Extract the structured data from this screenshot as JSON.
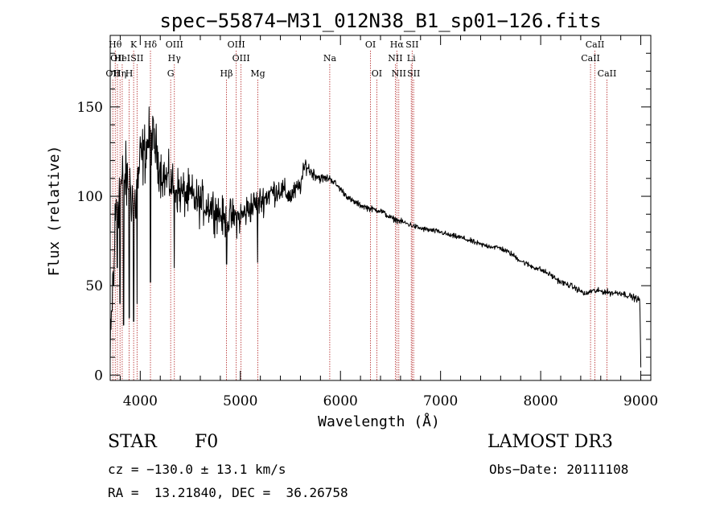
{
  "chart_data": {
    "type": "line",
    "title": "spec−55874−M31_012N38_B1_sp01−126.fits",
    "xlabel": "Wavelength (Å)",
    "ylabel": "Flux (relative)",
    "xlim": [
      3700,
      9100
    ],
    "ylim": [
      -3,
      190
    ],
    "xticks": [
      4000,
      5000,
      6000,
      7000,
      8000,
      9000
    ],
    "yticks": [
      0,
      50,
      100,
      150
    ],
    "grid": false,
    "line_color": "#000000",
    "marker_color": "#b22222",
    "spectrum_anchors": {
      "x": [
        3700,
        3730,
        3760,
        3800,
        3850,
        3900,
        3950,
        4000,
        4050,
        4100,
        4150,
        4200,
        4250,
        4300,
        4350,
        4400,
        4500,
        4600,
        4700,
        4800,
        4850,
        4900,
        5000,
        5100,
        5200,
        5300,
        5400,
        5500,
        5600,
        5650,
        5700,
        5800,
        5900,
        6000,
        6100,
        6200,
        6300,
        6400,
        6500,
        6600,
        6700,
        6800,
        6900,
        7000,
        7100,
        7200,
        7300,
        7400,
        7500,
        7600,
        7700,
        7800,
        7900,
        8000,
        8100,
        8200,
        8300,
        8400,
        8450,
        8500,
        8600,
        8700,
        8800,
        8900,
        8990,
        9000
      ],
      "y": [
        5,
        60,
        95,
        105,
        110,
        105,
        95,
        120,
        125,
        135,
        128,
        115,
        110,
        108,
        105,
        102,
        100,
        96,
        95,
        90,
        85,
        88,
        88,
        94,
        97,
        102,
        104,
        100,
        106,
        118,
        114,
        110,
        110,
        104,
        98,
        95,
        93,
        92,
        88,
        86,
        84,
        82,
        81,
        80,
        78,
        77,
        75,
        73,
        72,
        71,
        68,
        64,
        61,
        59,
        56,
        52,
        50,
        47,
        45,
        47,
        47,
        46,
        46,
        44,
        42,
        5
      ]
    },
    "noise_amplitude": [
      [
        3700,
        25
      ],
      [
        3800,
        22
      ],
      [
        4000,
        20
      ],
      [
        4200,
        15
      ],
      [
        4500,
        14
      ],
      [
        5000,
        11
      ],
      [
        5500,
        7
      ],
      [
        5800,
        3
      ],
      [
        6000,
        2
      ],
      [
        7000,
        1.6
      ],
      [
        8500,
        1.8
      ],
      [
        9000,
        2
      ]
    ],
    "dips": [
      {
        "x": 3734,
        "y": 50
      },
      {
        "x": 3771,
        "y": 60
      },
      {
        "x": 3798,
        "y": 40
      },
      {
        "x": 3835,
        "y": 28
      },
      {
        "x": 3889,
        "y": 32
      },
      {
        "x": 3933,
        "y": 30
      },
      {
        "x": 3968,
        "y": 40
      },
      {
        "x": 4102,
        "y": 52
      },
      {
        "x": 4340,
        "y": 60
      },
      {
        "x": 4861,
        "y": 62
      },
      {
        "x": 5172,
        "y": 63
      }
    ],
    "line_markers": [
      {
        "x": 3726,
        "labels": [
          "OII"
        ],
        "levels": [
          3
        ]
      },
      {
        "x": 3750,
        "labels": [
          "Hθ"
        ],
        "levels": [
          1
        ]
      },
      {
        "x": 3772,
        "labels": [
          "OII"
        ],
        "levels": [
          2
        ]
      },
      {
        "x": 3798,
        "labels": [
          "Hη"
        ],
        "levels": [
          3
        ]
      },
      {
        "x": 3820,
        "labels": [
          "HeI"
        ],
        "levels": [
          2
        ]
      },
      {
        "x": 3889,
        "labels": [
          "H"
        ],
        "levels": [
          3
        ]
      },
      {
        "x": 3934,
        "labels": [
          "K"
        ],
        "levels": [
          1
        ]
      },
      {
        "x": 3968,
        "labels": [
          "SII"
        ],
        "levels": [
          2
        ]
      },
      {
        "x": 4102,
        "labels": [
          "Hδ"
        ],
        "levels": [
          1
        ]
      },
      {
        "x": 4304,
        "labels": [
          "G"
        ],
        "levels": [
          3
        ]
      },
      {
        "x": 4341,
        "labels": [
          "OIII",
          "Hγ"
        ],
        "levels": [
          1,
          2
        ]
      },
      {
        "x": 4861,
        "labels": [
          "Hβ"
        ],
        "levels": [
          3
        ]
      },
      {
        "x": 4959,
        "labels": [
          "OIII"
        ],
        "levels": [
          1
        ]
      },
      {
        "x": 5007,
        "labels": [
          "OIII"
        ],
        "levels": [
          2
        ]
      },
      {
        "x": 5175,
        "labels": [
          "Mg"
        ],
        "levels": [
          3
        ]
      },
      {
        "x": 5893,
        "labels": [
          "Na"
        ],
        "levels": [
          2
        ]
      },
      {
        "x": 6300,
        "labels": [
          "OI"
        ],
        "levels": [
          1
        ]
      },
      {
        "x": 6363,
        "labels": [
          "OI"
        ],
        "levels": [
          3
        ]
      },
      {
        "x": 6548,
        "labels": [
          "NII"
        ],
        "levels": [
          2
        ]
      },
      {
        "x": 6563,
        "labels": [
          "Hα"
        ],
        "levels": [
          1
        ]
      },
      {
        "x": 6583,
        "labels": [
          "NII"
        ],
        "levels": [
          3
        ]
      },
      {
        "x": 6707,
        "labels": [
          "Li"
        ],
        "levels": [
          2
        ]
      },
      {
        "x": 6716,
        "labels": [
          "SII"
        ],
        "levels": [
          1
        ]
      },
      {
        "x": 6731,
        "labels": [
          "SII"
        ],
        "levels": [
          3
        ]
      },
      {
        "x": 8498,
        "labels": [
          "CaII"
        ],
        "levels": [
          2
        ]
      },
      {
        "x": 8542,
        "labels": [
          "CaII"
        ],
        "levels": [
          1
        ]
      },
      {
        "x": 8662,
        "labels": [
          "CaII"
        ],
        "levels": [
          3
        ]
      }
    ]
  },
  "info": {
    "class": "STAR",
    "subclass": "F0",
    "survey": "LAMOST DR3",
    "cz": "cz = −130.0 ± 13.1 km/s",
    "obs_date": "Obs−Date: 20111108",
    "coords": "RA =  13.21840, DEC =  36.26758"
  }
}
